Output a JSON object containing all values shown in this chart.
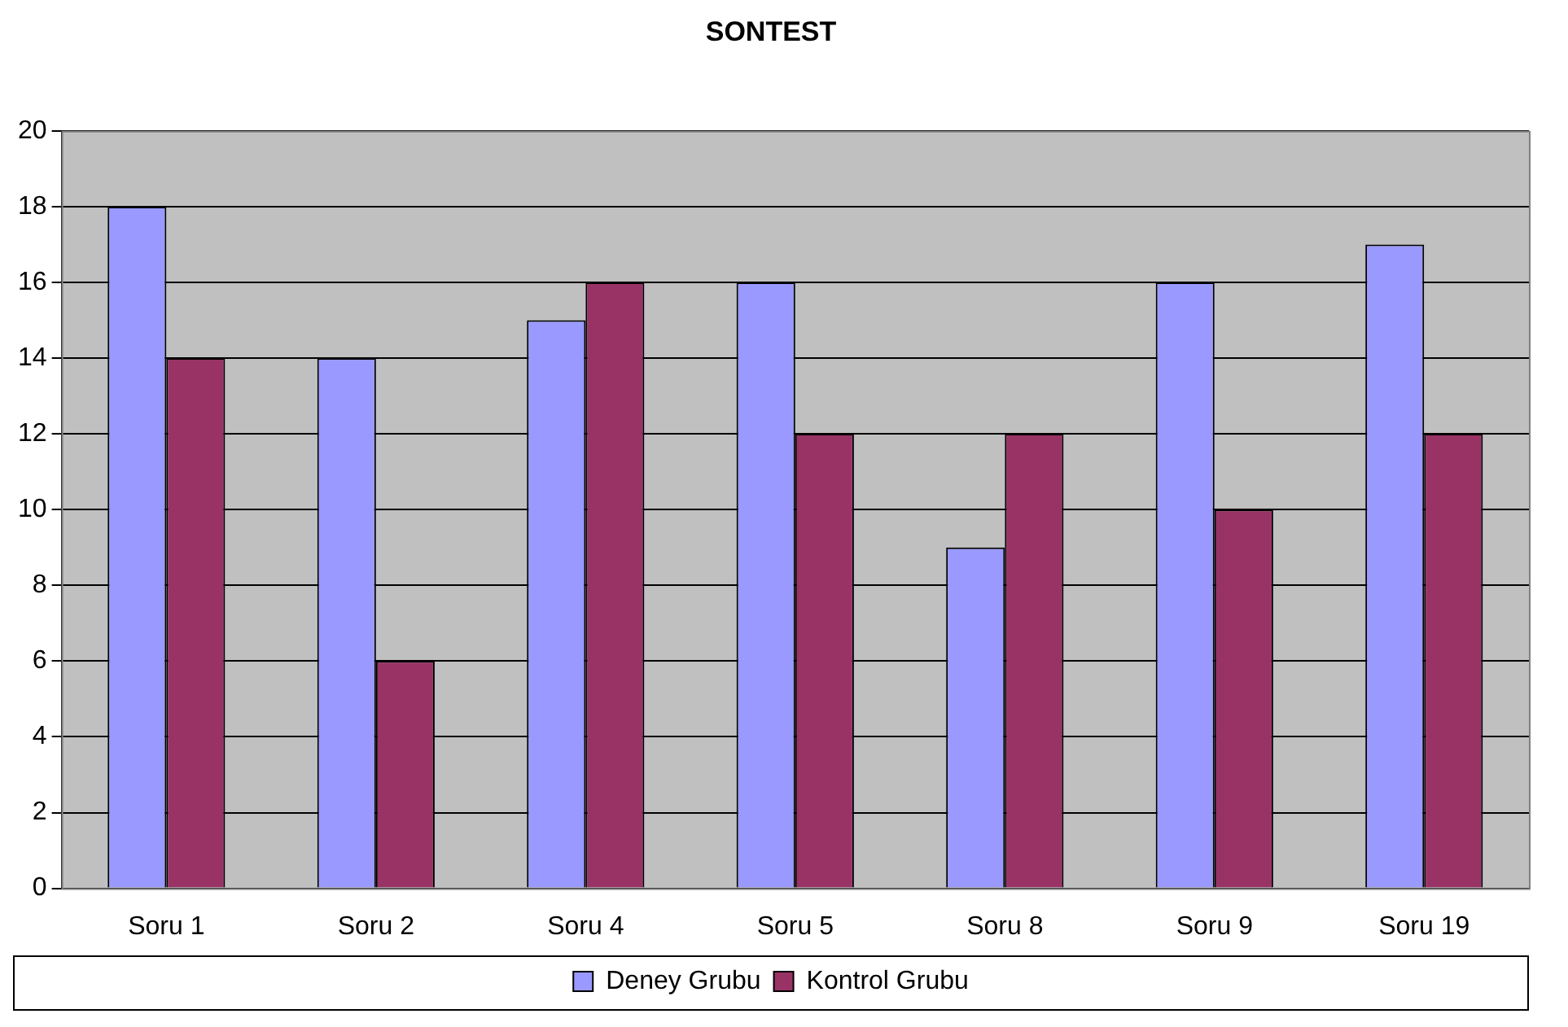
{
  "chart_data": {
    "type": "bar",
    "title": "SONTEST",
    "categories": [
      "Soru 1",
      "Soru 2",
      "Soru 4",
      "Soru 5",
      "Soru 8",
      "Soru 9",
      "Soru 19"
    ],
    "series": [
      {
        "name": "Deney Grubu",
        "color": "#9999ff",
        "values": [
          18,
          14,
          15,
          16,
          9,
          16,
          17
        ]
      },
      {
        "name": "Kontrol Grubu",
        "color": "#993366",
        "values": [
          14,
          6,
          16,
          12,
          12,
          10,
          12
        ]
      }
    ],
    "ylim": [
      0,
      20
    ],
    "yticks": [
      0,
      2,
      4,
      6,
      8,
      10,
      12,
      14,
      16,
      18,
      20
    ],
    "grid": "y",
    "legend": "bottom"
  }
}
